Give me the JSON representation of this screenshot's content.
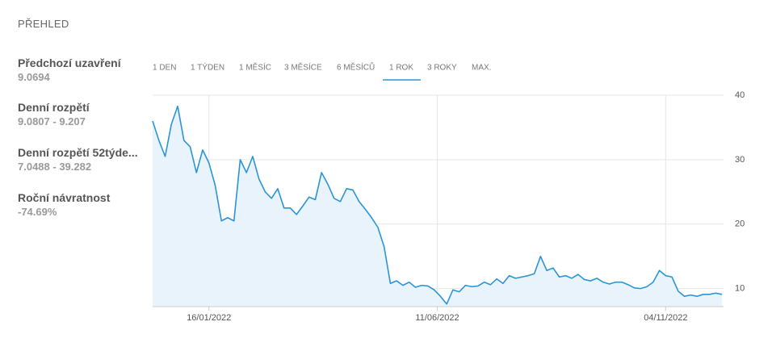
{
  "header": {
    "title": "PŘEHLED"
  },
  "stats": [
    {
      "label": "Předchozí uzavření",
      "value": "9.0694"
    },
    {
      "label": "Denní rozpětí",
      "value": "9.0807 - 9.207"
    },
    {
      "label": "Denní rozpětí 52týde...",
      "value": "7.0488 - 39.282"
    },
    {
      "label": "Roční návratnost",
      "value": "-74.69%"
    }
  ],
  "tabs": [
    "1 DEN",
    "1 TÝDEN",
    "1 MĚSÍC",
    "3 MĚSÍCE",
    "6 MĚSÍCŮ",
    "1 ROK",
    "3 ROKY",
    "MAX."
  ],
  "chart_data": {
    "type": "line",
    "color": "#2b95d4",
    "fill_color": "#e9f3fb",
    "grid": true,
    "x": [
      "11/12/2021",
      "15/12/2021",
      "19/12/2021",
      "23/12/2021",
      "27/12/2021",
      "31/12/2021",
      "04/01/2022",
      "08/01/2022",
      "12/01/2022",
      "16/01/2022",
      "20/01/2022",
      "24/01/2022",
      "28/01/2022",
      "01/02/2022",
      "05/02/2022",
      "09/02/2022",
      "13/02/2022",
      "17/02/2022",
      "21/02/2022",
      "25/02/2022",
      "01/03/2022",
      "05/03/2022",
      "09/03/2022",
      "13/03/2022",
      "17/03/2022",
      "21/03/2022",
      "25/03/2022",
      "29/03/2022",
      "02/04/2022",
      "06/04/2022",
      "10/04/2022",
      "14/04/2022",
      "18/04/2022",
      "22/04/2022",
      "26/04/2022",
      "30/04/2022",
      "04/05/2022",
      "08/05/2022",
      "12/05/2022",
      "16/05/2022",
      "20/05/2022",
      "24/05/2022",
      "28/05/2022",
      "01/06/2022",
      "05/06/2022",
      "09/06/2022",
      "13/06/2022",
      "17/06/2022",
      "21/06/2022",
      "25/06/2022",
      "29/06/2022",
      "03/07/2022",
      "07/07/2022",
      "11/07/2022",
      "15/07/2022",
      "19/07/2022",
      "23/07/2022",
      "27/07/2022",
      "31/07/2022",
      "04/08/2022",
      "08/08/2022",
      "12/08/2022",
      "16/08/2022",
      "20/08/2022",
      "24/08/2022",
      "28/08/2022",
      "01/09/2022",
      "05/09/2022",
      "09/09/2022",
      "13/09/2022",
      "17/09/2022",
      "21/09/2022",
      "25/09/2022",
      "29/09/2022",
      "03/10/2022",
      "07/10/2022",
      "11/10/2022",
      "15/10/2022",
      "19/10/2022",
      "23/10/2022",
      "27/10/2022",
      "31/10/2022",
      "04/11/2022",
      "08/11/2022",
      "12/11/2022",
      "16/11/2022",
      "20/11/2022",
      "24/11/2022",
      "28/11/2022",
      "02/12/2022",
      "06/12/2022",
      "10/12/2022"
    ],
    "values": [
      36,
      33,
      30.5,
      35.5,
      38.3,
      33,
      32,
      28,
      31.5,
      29.5,
      26,
      20.5,
      21,
      20.5,
      30,
      28,
      30.5,
      27,
      25,
      24,
      25.5,
      22.5,
      22.5,
      21.5,
      22.8,
      24.2,
      23.8,
      28,
      26.2,
      24,
      23.5,
      25.5,
      25.3,
      23.5,
      22.3,
      21,
      19.5,
      16.5,
      10.8,
      11.2,
      10.5,
      11,
      10.2,
      10.5,
      10.4,
      9.8,
      8.8,
      7.6,
      9.8,
      9.5,
      10.5,
      10.3,
      10.4,
      11,
      10.6,
      11.5,
      10.8,
      12,
      11.6,
      11.8,
      12,
      12.3,
      15,
      12.8,
      13.2,
      11.8,
      12,
      11.6,
      12.2,
      11.4,
      11.2,
      11.6,
      11,
      10.7,
      11,
      11,
      10.6,
      10.1,
      10,
      10.3,
      11,
      12.8,
      12,
      11.8,
      9.6,
      8.8,
      9,
      8.8,
      9.1,
      9.1,
      9.3,
      9.1
    ],
    "xlim": [
      "11/12/2021",
      "11/12/2022"
    ],
    "xticks": [
      "16/01/2022",
      "11/06/2022",
      "04/11/2022"
    ],
    "ylim": [
      7.2,
      40
    ],
    "yticks": [
      10,
      20,
      30,
      40
    ]
  }
}
